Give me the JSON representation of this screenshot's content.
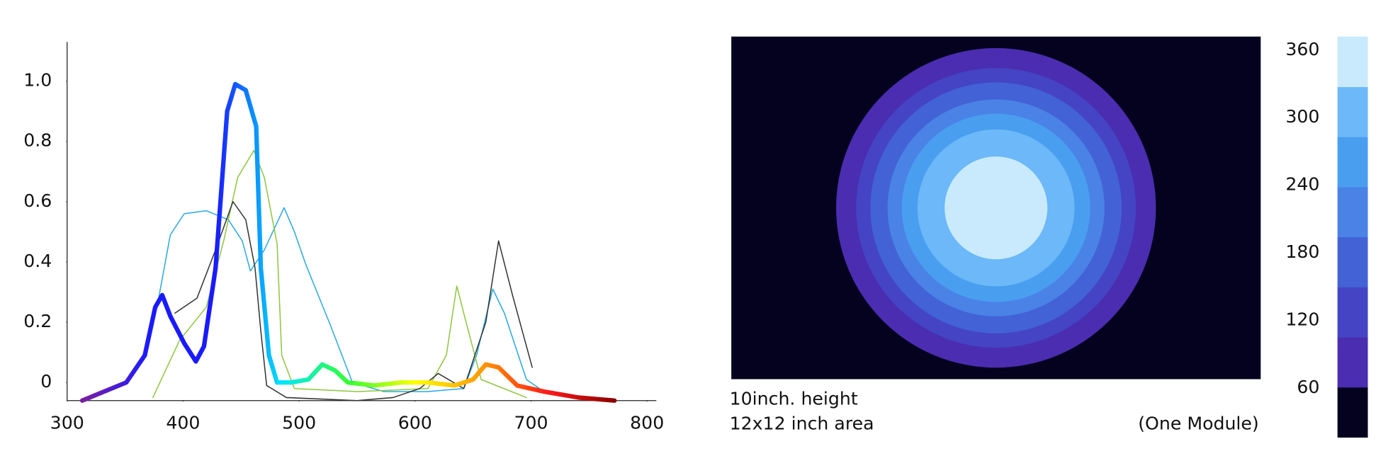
{
  "chart_data": [
    {
      "type": "line",
      "xlim": [
        300,
        808
      ],
      "ylim": [
        -0.06,
        1.13
      ],
      "xticks": [
        300,
        400,
        500,
        600,
        700,
        800
      ],
      "yticks": [
        0,
        0.2,
        0.4,
        0.6,
        0.8,
        {
          "value": 1,
          "label": "1.0"
        }
      ],
      "series": [
        {
          "color": "#29a8e0",
          "width": 1.2,
          "x": [
            378,
            389,
            401,
            420,
            439,
            451,
            458,
            470,
            487,
            496,
            506,
            527,
            546,
            573,
            611,
            642,
            653,
            667,
            677,
            696,
            711
          ],
          "values": [
            0.26,
            0.49,
            0.56,
            0.57,
            0.54,
            0.47,
            0.37,
            0.44,
            0.58,
            0.5,
            0.39,
            0.19,
            0.0,
            -0.03,
            -0.03,
            -0.02,
            0.09,
            0.31,
            0.23,
            0.01,
            -0.03
          ]
        },
        {
          "color": "#8dc63f",
          "width": 1.2,
          "x": [
            374,
            397,
            420,
            435,
            447,
            461,
            470,
            481,
            485,
            496,
            550,
            611,
            627,
            636,
            644,
            657,
            696
          ],
          "values": [
            -0.05,
            0.14,
            0.25,
            0.47,
            0.68,
            0.77,
            0.68,
            0.46,
            0.09,
            -0.02,
            -0.03,
            -0.02,
            0.09,
            0.32,
            0.2,
            0.01,
            -0.05
          ]
        },
        {
          "color": "#333333",
          "width": 1.2,
          "x": [
            393,
            412,
            428,
            443,
            454,
            462,
            467,
            472,
            489,
            550,
            581,
            604,
            620,
            642,
            661,
            672,
            684,
            701
          ],
          "values": [
            0.23,
            0.28,
            0.44,
            0.6,
            0.54,
            0.38,
            0.17,
            -0.01,
            -0.05,
            -0.06,
            -0.05,
            -0.02,
            0.03,
            -0.02,
            0.2,
            0.47,
            0.29,
            0.05
          ]
        },
        {
          "colors": [
            "#7b1fa2",
            "#1a1aff",
            "#1a1aff",
            "#00e5ff",
            "#33ff33",
            "#ffff00",
            "#ff9900",
            "#ff1a1a",
            "#8b0000"
          ],
          "width": 5,
          "x": [
            313,
            351,
            367,
            376,
            382,
            389,
            401,
            411,
            418,
            428,
            438,
            445,
            454,
            463,
            467,
            474,
            481,
            493,
            508,
            520,
            531,
            542,
            565,
            588,
            611,
            634,
            650,
            661,
            672,
            688,
            711,
            741,
            772
          ],
          "values": [
            -0.06,
            0.0,
            0.09,
            0.25,
            0.29,
            0.22,
            0.13,
            0.07,
            0.12,
            0.38,
            0.9,
            0.99,
            0.97,
            0.85,
            0.38,
            0.09,
            0.0,
            0.0,
            0.01,
            0.06,
            0.04,
            0.0,
            -0.01,
            0.0,
            0.0,
            -0.01,
            0.01,
            0.06,
            0.05,
            -0.01,
            -0.03,
            -0.05,
            -0.06
          ]
        }
      ]
    },
    {
      "type": "rings",
      "background": "#05021f",
      "xlim": [
        -9.27,
        9.27
      ],
      "ylim": [
        -6,
        6
      ],
      "radii": [
        5.6,
        4.9,
        4.4,
        3.8,
        3.3,
        2.75,
        2.2,
        1.8
      ],
      "values": [
        83,
        127,
        172,
        216,
        261,
        290,
        320,
        350
      ],
      "clim": [
        16.5,
        372
      ],
      "colors": [
        "#05021f",
        "#4a2db0",
        "#4444c4",
        "#4262d6",
        "#4a82e6",
        "#4a9ef0",
        "#6cb8f8",
        "#c8eafc"
      ],
      "cticks": [
        60,
        120,
        180,
        240,
        300,
        360
      ],
      "annotations": [
        "10inch. height",
        "12x12 inch area",
        "(One Module)"
      ]
    }
  ]
}
